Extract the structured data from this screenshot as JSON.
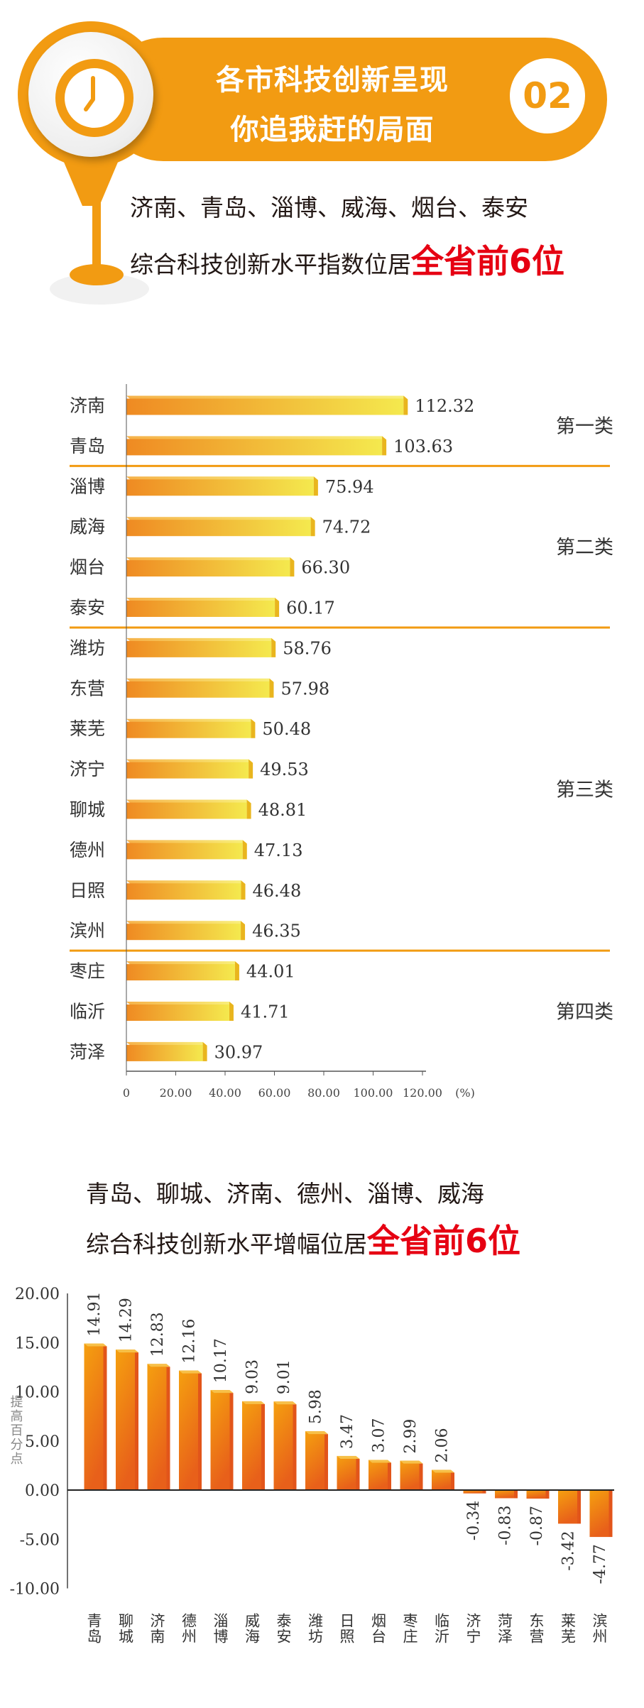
{
  "header": {
    "title_line1": "各市科技创新呈现",
    "title_line2": "你追我赶的局面",
    "section_number": "02",
    "icon": "clock-icon",
    "accent_color": "#f29b12"
  },
  "summary1": {
    "line1": "济南、青岛、淄博、威海、烟台、泰安",
    "line2_prefix": "综合科技创新水平指数位居",
    "line2_highlight": "全省前6位",
    "highlight_color": "#e60012"
  },
  "summary2": {
    "line1": "青岛、聊城、济南、德州、淄博、威海",
    "line2_prefix": "综合科技创新水平增幅位居",
    "line2_highlight": "全省前6位"
  },
  "chart_data": [
    {
      "type": "bar",
      "orientation": "horizontal",
      "categories": [
        "济南",
        "青岛",
        "淄博",
        "威海",
        "烟台",
        "泰安",
        "潍坊",
        "东营",
        "莱芜",
        "济宁",
        "聊城",
        "德州",
        "日照",
        "滨州",
        "枣庄",
        "临沂",
        "菏泽"
      ],
      "values": [
        112.32,
        103.63,
        75.94,
        74.72,
        66.3,
        60.17,
        58.76,
        57.98,
        50.48,
        49.53,
        48.81,
        47.13,
        46.48,
        46.35,
        44.01,
        41.71,
        30.97
      ],
      "value_labels": [
        "112.32",
        "103.63",
        "75.94",
        "74.72",
        "66.30",
        "60.17",
        "58.76",
        "57.98",
        "50.48",
        "49.53",
        "48.81",
        "47.13",
        "46.48",
        "46.35",
        "44.01",
        "41.71",
        "30.97"
      ],
      "groups": [
        {
          "label": "第一类",
          "count": 2
        },
        {
          "label": "第二类",
          "count": 4
        },
        {
          "label": "第三类",
          "count": 8
        },
        {
          "label": "第四类",
          "count": 3
        }
      ],
      "xlim": [
        0,
        120
      ],
      "x_ticks": [
        "0",
        "20.00",
        "40.00",
        "60.00",
        "80.00",
        "100.00",
        "120.00"
      ],
      "x_unit": "(%)",
      "grid": false
    },
    {
      "type": "bar",
      "orientation": "vertical",
      "categories": [
        "青岛",
        "聊城",
        "济南",
        "德州",
        "淄博",
        "威海",
        "泰安",
        "潍坊",
        "日照",
        "烟台",
        "枣庄",
        "临沂",
        "济宁",
        "菏泽",
        "东营",
        "莱芜",
        "滨州"
      ],
      "values": [
        14.91,
        14.29,
        12.83,
        12.16,
        10.17,
        9.03,
        9.01,
        5.98,
        3.47,
        3.07,
        2.99,
        2.06,
        -0.34,
        -0.83,
        -0.87,
        -3.42,
        -4.77
      ],
      "value_labels": [
        "14.91",
        "14.29",
        "12.83",
        "12.16",
        "10.17",
        "9.03",
        "9.01",
        "5.98",
        "3.47",
        "3.07",
        "2.99",
        "2.06",
        "-0.34",
        "-0.83",
        "-0.87",
        "-3.42",
        "-4.77"
      ],
      "ylabel": "提高百分点",
      "ylim": [
        -10,
        20
      ],
      "y_ticks": [
        "20.00",
        "15.00",
        "10.00",
        "5.00",
        "0.00",
        "-5.00",
        "-10.00"
      ],
      "grid": false
    }
  ]
}
